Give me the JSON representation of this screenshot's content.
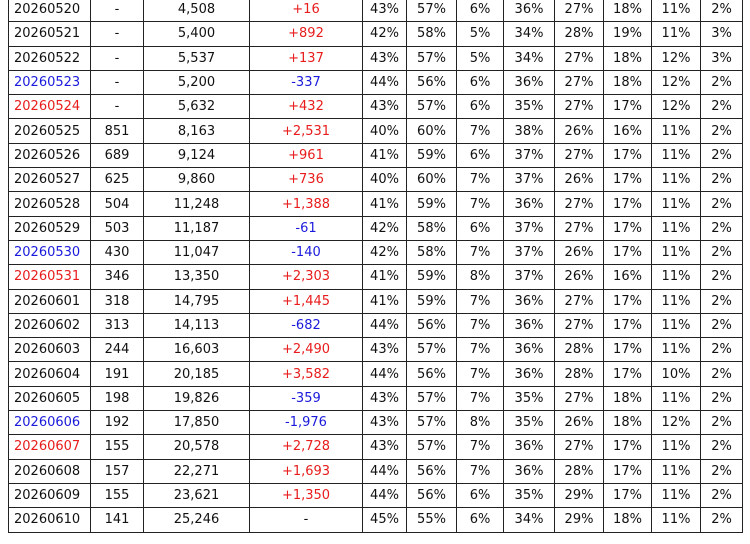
{
  "table": {
    "rows": [
      {
        "cells": [
          "20260520",
          "-",
          "4,508",
          "+16",
          "43%",
          "57%",
          "6%",
          "36%",
          "27%",
          "18%",
          "11%",
          "2%"
        ]
      },
      {
        "cells": [
          "20260521",
          "-",
          "5,400",
          "+892",
          "42%",
          "58%",
          "5%",
          "34%",
          "28%",
          "19%",
          "11%",
          "3%"
        ]
      },
      {
        "cells": [
          "20260522",
          "-",
          "5,537",
          "+137",
          "43%",
          "57%",
          "5%",
          "34%",
          "27%",
          "18%",
          "12%",
          "3%"
        ]
      },
      {
        "cells": [
          "20260523",
          "-",
          "5,200",
          "-337",
          "44%",
          "56%",
          "6%",
          "36%",
          "27%",
          "18%",
          "12%",
          "2%"
        ],
        "date_color": "#1a1adc"
      },
      {
        "cells": [
          "20260524",
          "-",
          "5,632",
          "+432",
          "43%",
          "57%",
          "6%",
          "35%",
          "27%",
          "17%",
          "12%",
          "2%"
        ],
        "date_color": "#e81c1c"
      },
      {
        "cells": [
          "20260525",
          "851",
          "8,163",
          "+2,531",
          "40%",
          "60%",
          "7%",
          "38%",
          "26%",
          "16%",
          "11%",
          "2%"
        ]
      },
      {
        "cells": [
          "20260526",
          "689",
          "9,124",
          "+961",
          "41%",
          "59%",
          "6%",
          "37%",
          "27%",
          "17%",
          "11%",
          "2%"
        ]
      },
      {
        "cells": [
          "20260527",
          "625",
          "9,860",
          "+736",
          "40%",
          "60%",
          "7%",
          "37%",
          "26%",
          "17%",
          "11%",
          "2%"
        ]
      },
      {
        "cells": [
          "20260528",
          "504",
          "11,248",
          "+1,388",
          "41%",
          "59%",
          "7%",
          "36%",
          "27%",
          "17%",
          "11%",
          "2%"
        ]
      },
      {
        "cells": [
          "20260529",
          "503",
          "11,187",
          "-61",
          "42%",
          "58%",
          "6%",
          "37%",
          "27%",
          "17%",
          "11%",
          "2%"
        ]
      },
      {
        "cells": [
          "20260530",
          "430",
          "11,047",
          "-140",
          "42%",
          "58%",
          "7%",
          "37%",
          "26%",
          "17%",
          "11%",
          "2%"
        ],
        "date_color": "#1a1adc"
      },
      {
        "cells": [
          "20260531",
          "346",
          "13,350",
          "+2,303",
          "41%",
          "59%",
          "8%",
          "37%",
          "26%",
          "16%",
          "11%",
          "2%"
        ],
        "date_color": "#e81c1c"
      },
      {
        "cells": [
          "20260601",
          "318",
          "14,795",
          "+1,445",
          "41%",
          "59%",
          "7%",
          "36%",
          "27%",
          "17%",
          "11%",
          "2%"
        ]
      },
      {
        "cells": [
          "20260602",
          "313",
          "14,113",
          "-682",
          "44%",
          "56%",
          "7%",
          "36%",
          "27%",
          "17%",
          "11%",
          "2%"
        ]
      },
      {
        "cells": [
          "20260603",
          "244",
          "16,603",
          "+2,490",
          "43%",
          "57%",
          "7%",
          "36%",
          "28%",
          "17%",
          "11%",
          "2%"
        ]
      },
      {
        "cells": [
          "20260604",
          "191",
          "20,185",
          "+3,582",
          "44%",
          "56%",
          "7%",
          "36%",
          "28%",
          "17%",
          "10%",
          "2%"
        ]
      },
      {
        "cells": [
          "20260605",
          "198",
          "19,826",
          "-359",
          "43%",
          "57%",
          "7%",
          "35%",
          "27%",
          "18%",
          "11%",
          "2%"
        ]
      },
      {
        "cells": [
          "20260606",
          "192",
          "17,850",
          "-1,976",
          "43%",
          "57%",
          "8%",
          "35%",
          "26%",
          "18%",
          "12%",
          "2%"
        ],
        "date_color": "#1a1adc"
      },
      {
        "cells": [
          "20260607",
          "155",
          "20,578",
          "+2,728",
          "43%",
          "57%",
          "7%",
          "36%",
          "27%",
          "17%",
          "11%",
          "2%"
        ],
        "date_color": "#e81c1c"
      },
      {
        "cells": [
          "20260608",
          "157",
          "22,271",
          "+1,693",
          "44%",
          "56%",
          "7%",
          "36%",
          "28%",
          "17%",
          "11%",
          "2%"
        ]
      },
      {
        "cells": [
          "20260609",
          "155",
          "23,621",
          "+1,350",
          "44%",
          "56%",
          "6%",
          "35%",
          "29%",
          "17%",
          "11%",
          "2%"
        ]
      },
      {
        "cells": [
          "20260610",
          "141",
          "25,246",
          "-",
          "45%",
          "55%",
          "6%",
          "34%",
          "29%",
          "18%",
          "11%",
          "2%"
        ]
      }
    ],
    "up_color": "#e81c1c",
    "down_color": "#1a1adc"
  }
}
